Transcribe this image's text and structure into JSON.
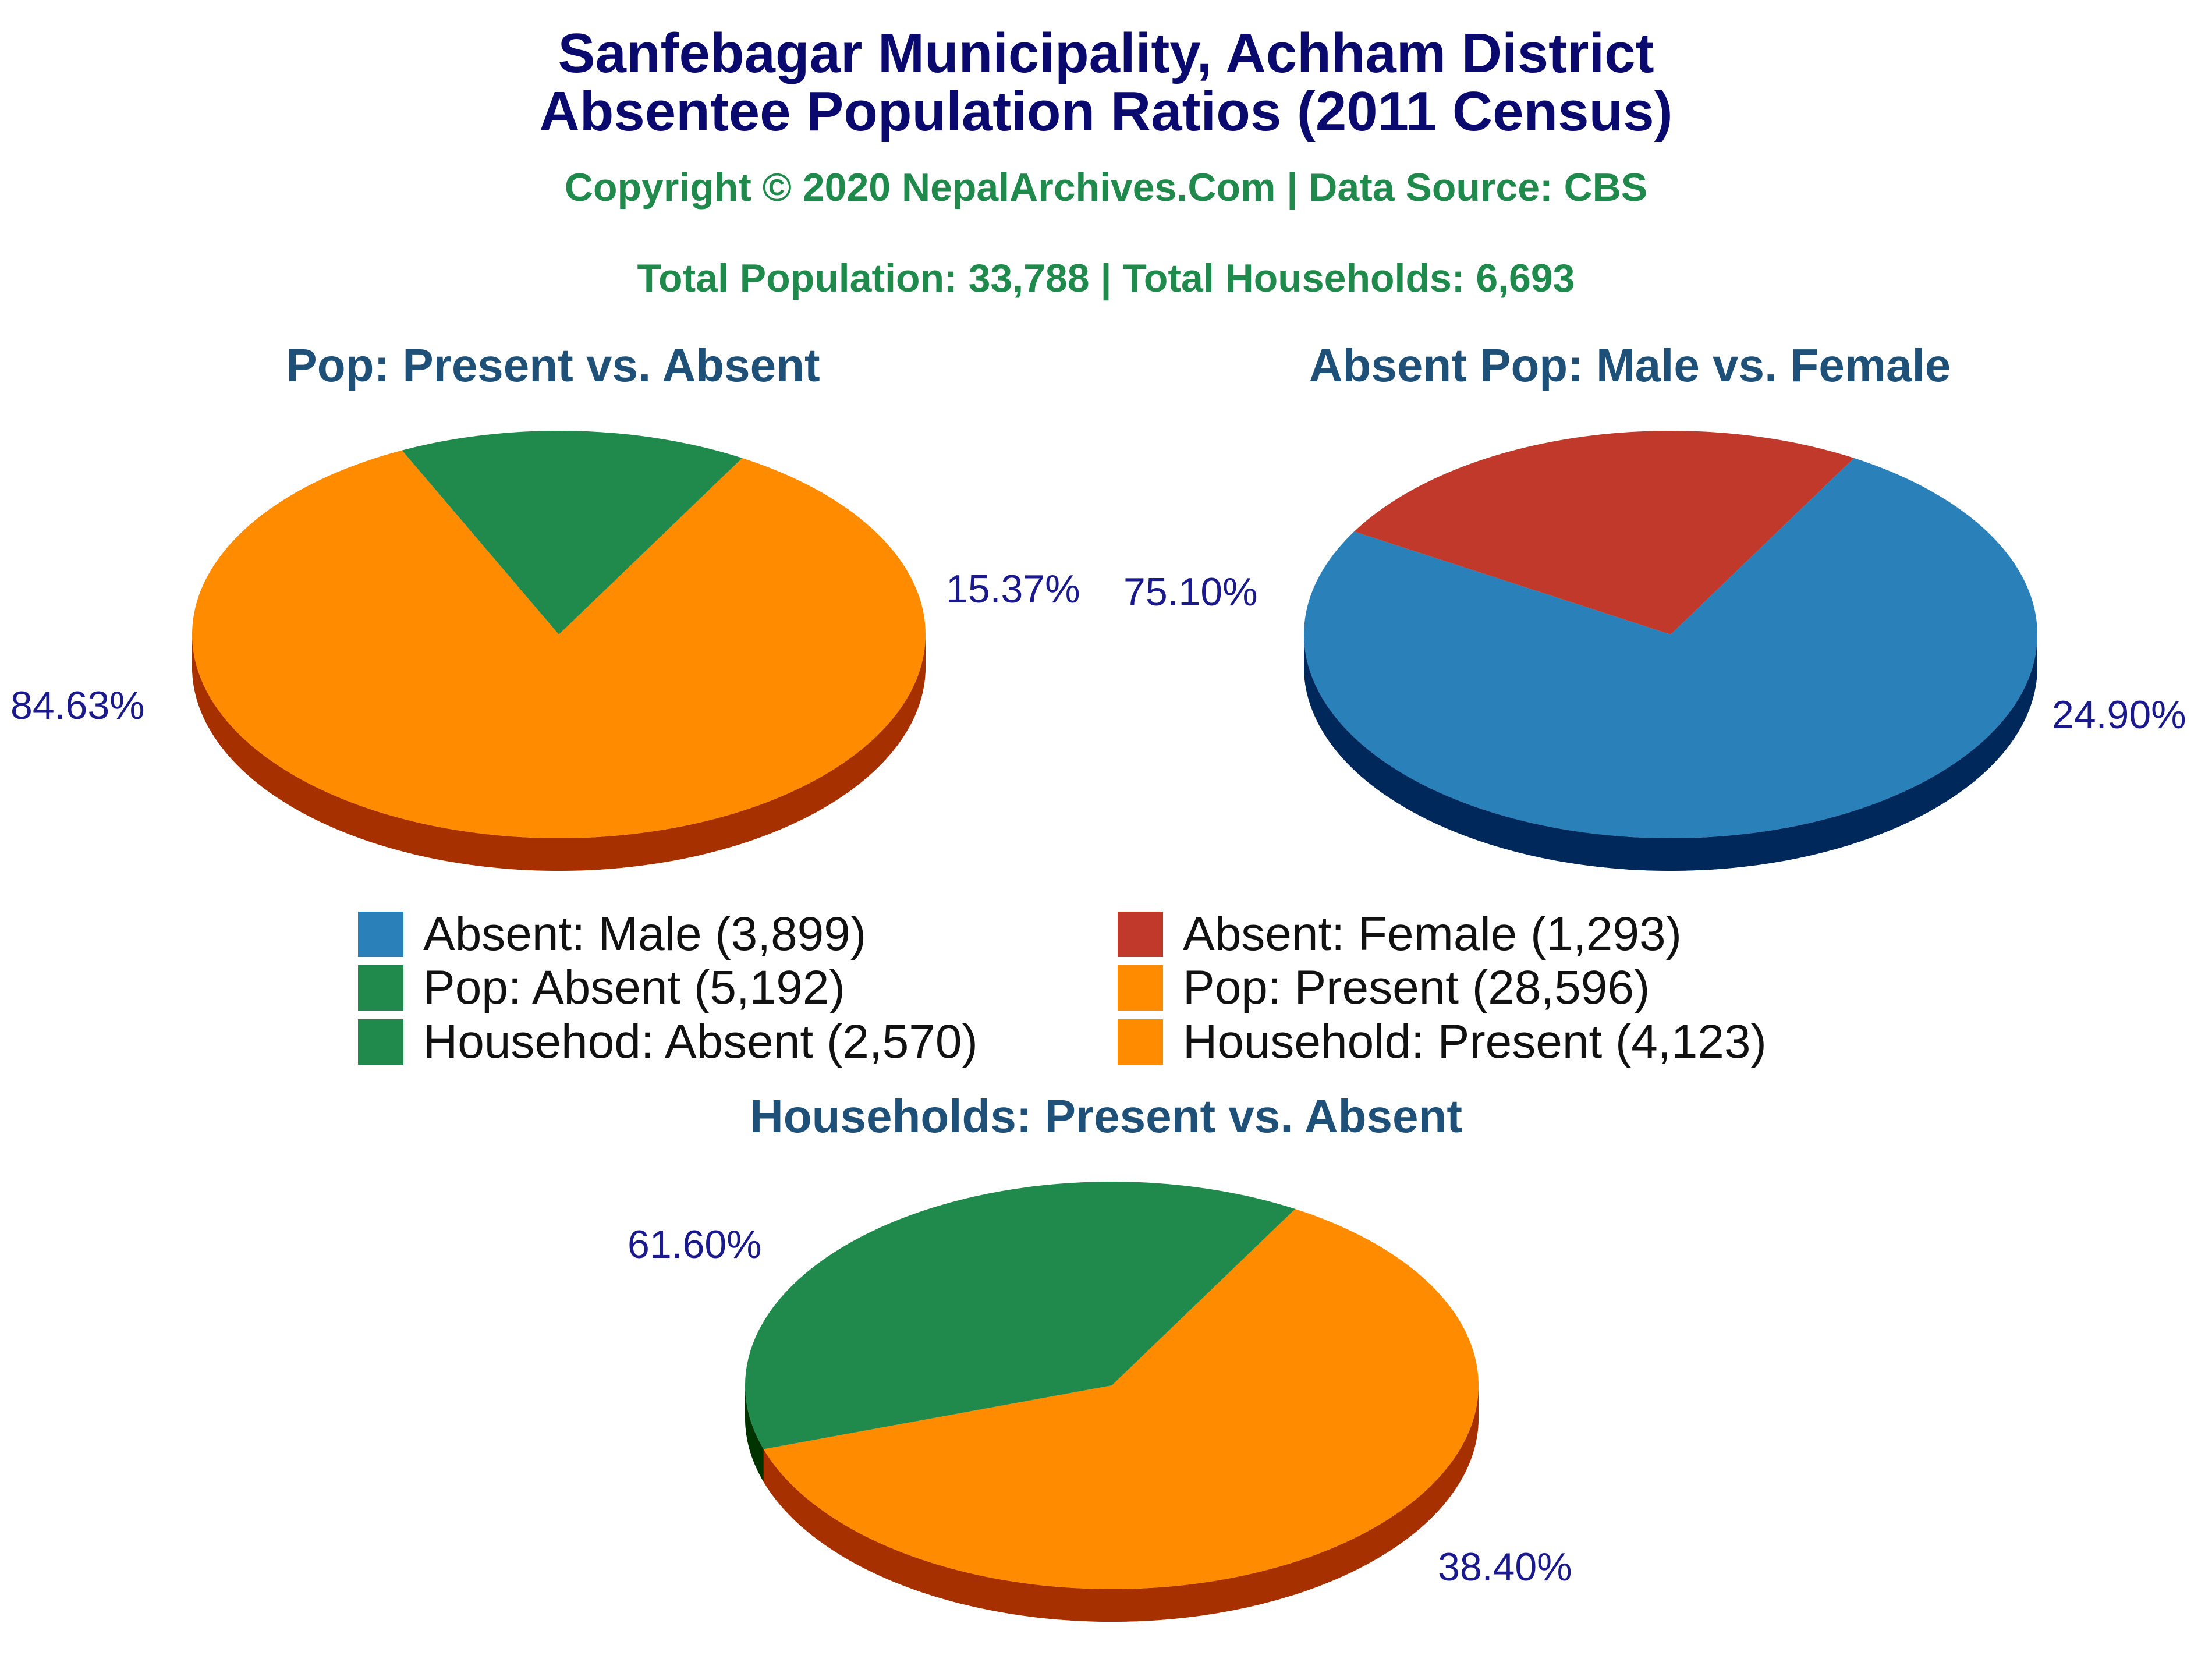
{
  "header": {
    "title_line1": "Sanfebagar Municipality, Achham District",
    "title_line2": "Absentee Population Ratios (2011 Census)",
    "copyright": "Copyright © 2020 NepalArchives.Com | Data Source: CBS",
    "totals": "Total Population: 33,788 | Total Households: 6,693"
  },
  "colors": {
    "title": "#0a0a6e",
    "subtitle": "#1f8a4c",
    "chart_title": "#1f5078",
    "pct_label": "#1a1a8c"
  },
  "chart_data": [
    {
      "type": "pie",
      "title": "Pop: Present vs. Absent",
      "slices": [
        {
          "label": "Pop: Present",
          "value": 28596,
          "percent_label": "84.63%",
          "color": "#ff8c00",
          "side_color": "#a63000"
        },
        {
          "label": "Pop: Absent",
          "value": 5192,
          "percent_label": "15.37%",
          "color": "#1f8a4c",
          "side_color": "#003300"
        }
      ]
    },
    {
      "type": "pie",
      "title": "Absent Pop: Male vs. Female",
      "slices": [
        {
          "label": "Absent: Male",
          "value": 3899,
          "percent_label": "75.10%",
          "color": "#2a80b9",
          "side_color": "#00285a"
        },
        {
          "label": "Absent: Female",
          "value": 1293,
          "percent_label": "24.90%",
          "color": "#c0392b",
          "side_color": "#640000"
        }
      ]
    },
    {
      "type": "pie",
      "title": "Households: Present vs. Absent",
      "slices": [
        {
          "label": "Household: Present",
          "value": 4123,
          "percent_label": "61.60%",
          "color": "#ff8c00",
          "side_color": "#a63000"
        },
        {
          "label": "Household: Absent",
          "value": 2570,
          "percent_label": "38.40%",
          "color": "#1f8a4c",
          "side_color": "#003300"
        }
      ]
    }
  ],
  "legend": [
    {
      "label": "Absent: Male (3,899)",
      "color": "#2a80b9"
    },
    {
      "label": "Absent: Female (1,293)",
      "color": "#c0392b"
    },
    {
      "label": "Pop: Absent (5,192)",
      "color": "#1f8a4c"
    },
    {
      "label": "Pop: Present (28,596)",
      "color": "#ff8c00"
    },
    {
      "label": "Househod: Absent (2,570)",
      "color": "#1f8a4c"
    },
    {
      "label": "Household: Present (4,123)",
      "color": "#ff8c00"
    }
  ]
}
